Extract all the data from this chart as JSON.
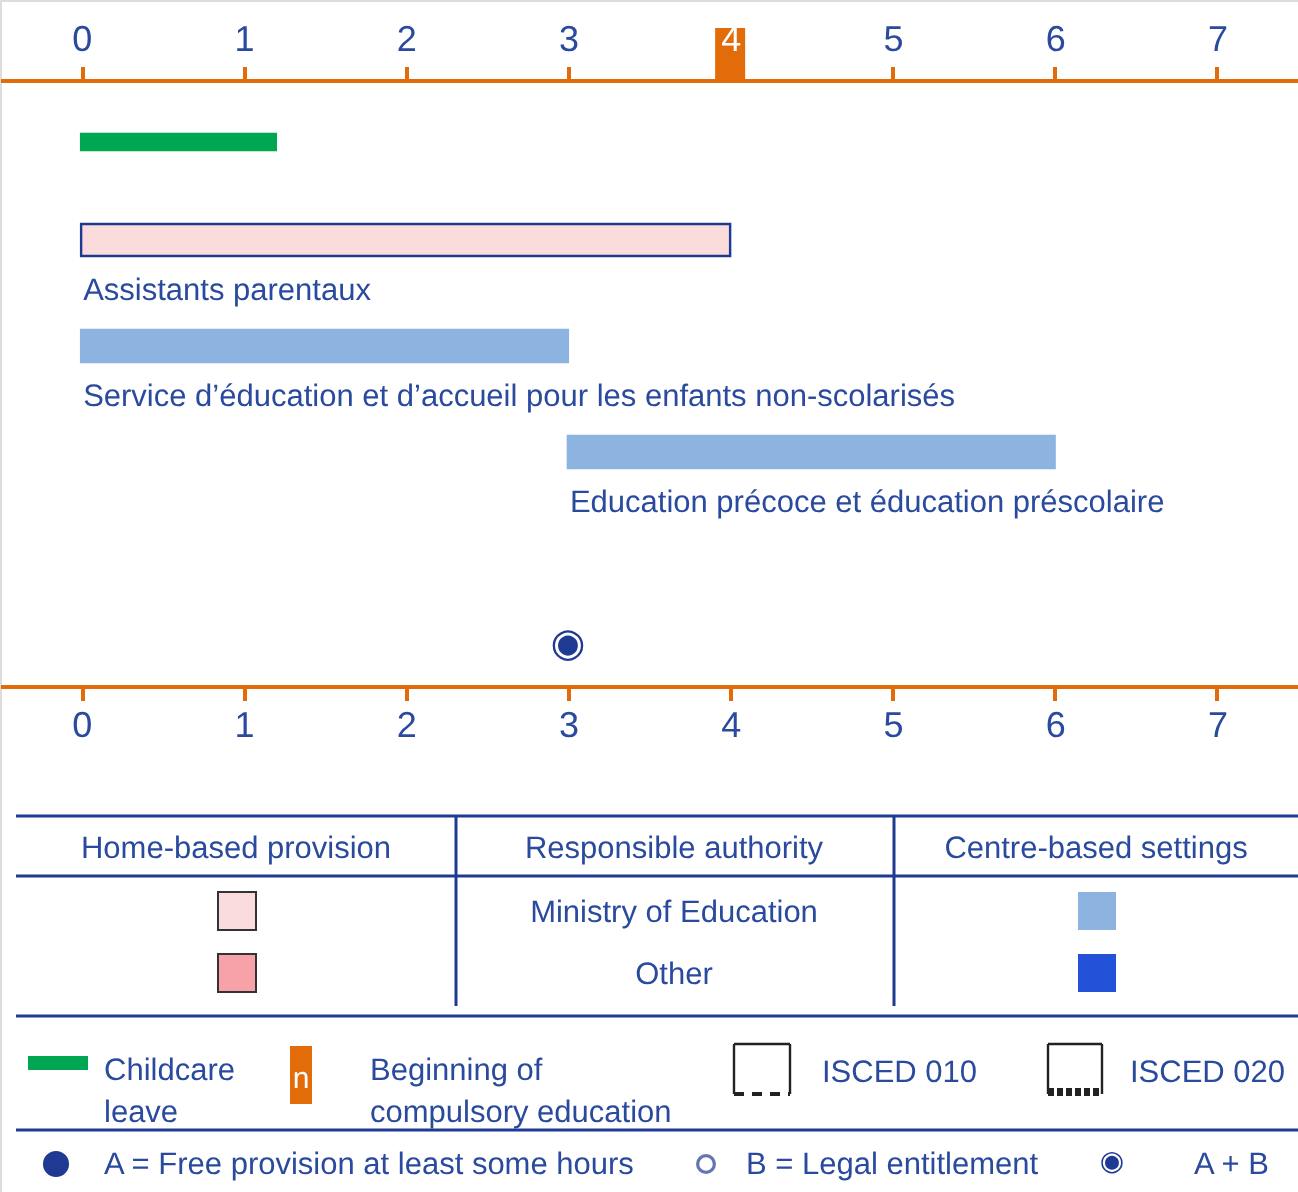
{
  "chart_data": {
    "type": "bar",
    "orientation": "horizontal",
    "categories": [
      null,
      "Assistants parentaux",
      "Service d’éducation et d’accueil pour les enfants non-scolarisés",
      "Education précoce et éducation préscolaire"
    ],
    "base": [
      0,
      0,
      0,
      3
    ],
    "values": [
      1.2,
      4,
      3,
      3
    ],
    "colors": [
      "#00a651",
      "#fadcdc",
      "#8db3e0",
      "#8db3e0"
    ],
    "xlim": [
      -0.5,
      7.5
    ],
    "xticks": [
      0,
      1,
      2,
      3,
      4,
      5,
      6,
      7
    ],
    "x2lim": [
      -0.5,
      7.5
    ],
    "x2ticks": [
      0,
      1,
      2,
      3,
      4,
      5,
      6,
      7
    ],
    "annotations": [
      "◉",
      "Home-based provision",
      "Responsible authority",
      "Centre-based settings",
      "Ministry of Education",
      "Other",
      "Childcare leave",
      "n",
      "Beginning of compulsory education",
      "ISCED 010",
      "ISCED 020",
      "A = Free provision at least some hours",
      "B = Legal entitlement",
      "A + B"
    ]
  }
}
